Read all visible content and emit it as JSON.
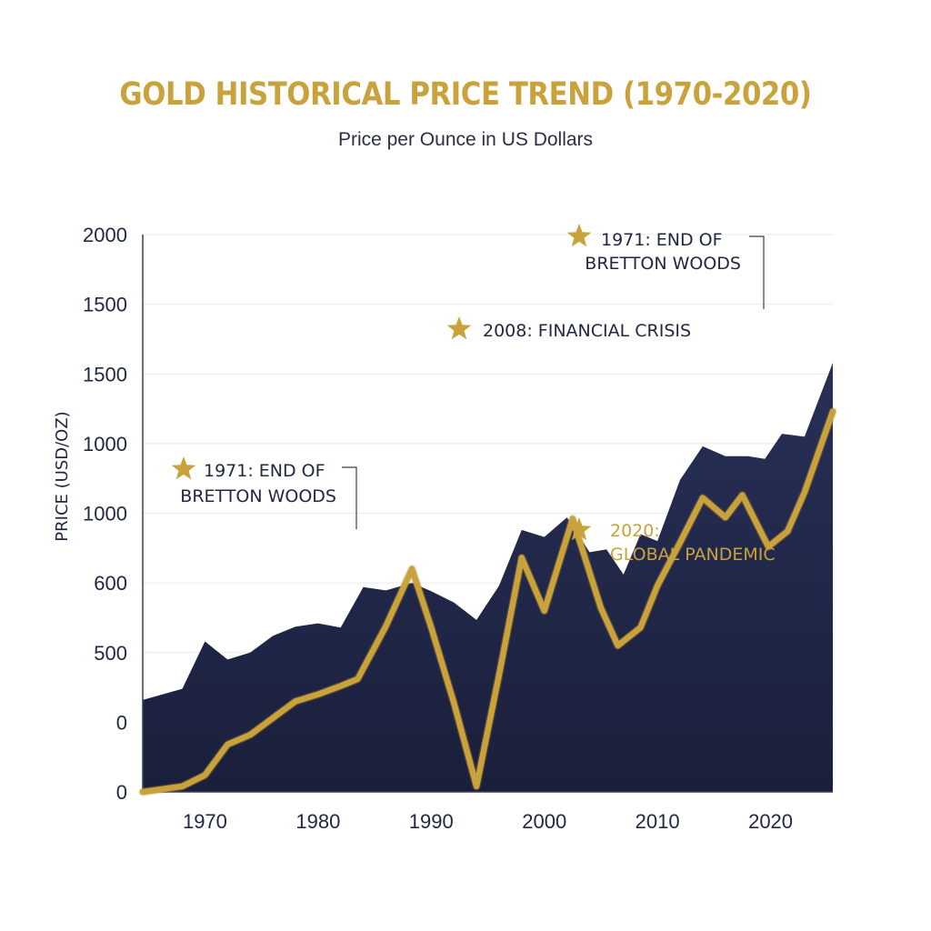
{
  "colors": {
    "gold": "#c9a23c",
    "gold_dark": "#b8902e",
    "navy": "#262d52",
    "navy_dark": "#1a1f3b",
    "text": "#232842",
    "grid": "#e6e8ef"
  },
  "chart_data": {
    "type": "area",
    "title": "GOLD HISTORICAL PRICE TREND (1970-2020)",
    "subtitle": "Price per Ounce in US Dollars",
    "ylabel": "PRICE (USD/OZ)",
    "xlabel": "",
    "grid": true,
    "xlim": [
      1964.5,
      2025.5
    ],
    "y_tick_labels": [
      "0",
      "0",
      "500",
      "600",
      "1000",
      "1000",
      "1500",
      "1500",
      "2000"
    ],
    "x_ticks": [
      1970,
      1980,
      1990,
      2000,
      2010,
      2020
    ],
    "series": [
      {
        "name": "area",
        "style": "filled-area",
        "x": [
          1964.5,
          1968,
          1970,
          1972,
          1974,
          1976,
          1978,
          1980,
          1982,
          1984,
          1986,
          1988.3,
          1990,
          1992,
          1994,
          1996,
          1998,
          2000,
          2002,
          2004,
          2005.5,
          2007,
          2008.5,
          2010,
          2012,
          2014,
          2016,
          2018,
          2019.5,
          2021,
          2023,
          2025.5
        ],
        "y": [
          330,
          370,
          540,
          475,
          500,
          560,
          593,
          605,
          590,
          735,
          723,
          750,
          720,
          680,
          617,
          740,
          940,
          915,
          985,
          860,
          870,
          780,
          925,
          900,
          1120,
          1240,
          1205,
          1205,
          1195,
          1285,
          1275,
          1540
        ]
      },
      {
        "name": "line",
        "style": "gold-line",
        "x": [
          1964.5,
          1968,
          1970,
          1972,
          1974,
          1976,
          1978,
          1980,
          1982,
          1983.5,
          1986,
          1988.3,
          1990,
          1992,
          1994,
          1996,
          1998,
          2000,
          2002.5,
          2005,
          2006.5,
          2008.5,
          2010,
          2012,
          2014,
          2016,
          2017.5,
          2019.8,
          2021.5,
          2023,
          2025.5
        ],
        "y": [
          0,
          20,
          60,
          170,
          205,
          265,
          325,
          350,
          380,
          405,
          595,
          800,
          590,
          320,
          20,
          420,
          840,
          650,
          980,
          660,
          525,
          590,
          740,
          895,
          1055,
          985,
          1065,
          880,
          935,
          1075,
          1365
        ]
      }
    ],
    "annotations": [
      {
        "text_lines": [
          "1971: END OF",
          "BRETTON WOODS"
        ],
        "style": "dark",
        "marker": "star"
      },
      {
        "text_lines": [
          "2008: FINANCIAL CRISIS"
        ],
        "style": "dark",
        "marker": "star"
      },
      {
        "text_lines": [
          "1971: END OF",
          "BRETTON WOODS"
        ],
        "style": "dark",
        "marker": "star"
      },
      {
        "text_lines": [
          "2020:",
          "GLOBAL PANDEMIC"
        ],
        "style": "gold",
        "marker": "star"
      }
    ]
  }
}
